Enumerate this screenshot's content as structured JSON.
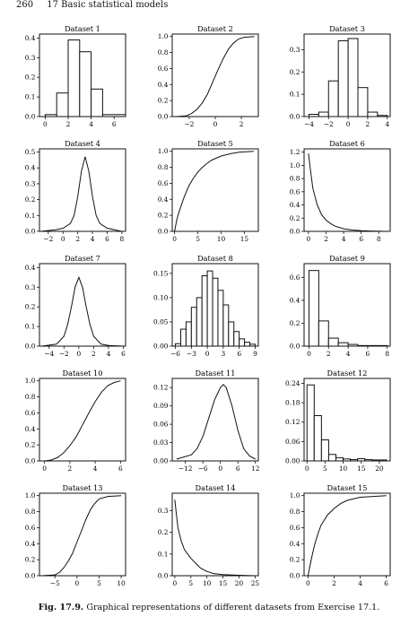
{
  "header": {
    "page_number": "260",
    "chapter": "17 Basic statistical models"
  },
  "caption": {
    "label": "Fig. 17.9.",
    "text": "Graphical representations of different datasets from Exercise 17.1."
  },
  "chart_data": [
    {
      "title": "Dataset 1",
      "type": "bar",
      "xlim": [
        -0.5,
        7
      ],
      "ylim": [
        0,
        0.42
      ],
      "xticks": [
        0,
        2,
        4,
        6
      ],
      "yticks": [
        0.0,
        0.1,
        0.2,
        0.3,
        0.4
      ],
      "ytick_labels": [
        "0.0",
        "0.1",
        "0.2",
        "0.3",
        "0.4"
      ],
      "bins": [
        [
          0,
          1,
          0.01
        ],
        [
          1,
          2,
          0.12
        ],
        [
          2,
          3,
          0.39
        ],
        [
          3,
          4,
          0.33
        ],
        [
          4,
          5,
          0.14
        ],
        [
          5,
          7,
          0.01
        ]
      ]
    },
    {
      "title": "Dataset 2",
      "type": "line",
      "xlim": [
        -3.3,
        3.3
      ],
      "ylim": [
        0,
        1.03
      ],
      "xticks": [
        -2,
        0,
        2
      ],
      "yticks": [
        0,
        0.2,
        0.4,
        0.6,
        0.8,
        1.0
      ],
      "ytick_labels": [
        "0.0",
        "0.2",
        "0.4",
        "0.6",
        "0.8",
        "1.0"
      ],
      "x": [
        -3.0,
        -2.2,
        -1.8,
        -1.4,
        -1.0,
        -0.6,
        -0.2,
        0.2,
        0.6,
        1.0,
        1.4,
        1.8,
        2.2,
        3.0
      ],
      "y": [
        0,
        0.01,
        0.04,
        0.09,
        0.17,
        0.28,
        0.43,
        0.58,
        0.72,
        0.84,
        0.92,
        0.97,
        0.99,
        1.0
      ]
    },
    {
      "title": "Dataset 3",
      "type": "bar",
      "xlim": [
        -4.5,
        4.3
      ],
      "ylim": [
        0,
        0.37
      ],
      "xticks": [
        -4,
        -2,
        0,
        2,
        4
      ],
      "yticks": [
        0,
        0.1,
        0.2,
        0.3
      ],
      "ytick_labels": [
        "0.0",
        "0.1",
        "0.2",
        "0.3"
      ],
      "bins": [
        [
          -4,
          -3,
          0.01
        ],
        [
          -3,
          -2,
          0.02
        ],
        [
          -2,
          -1,
          0.16
        ],
        [
          -1,
          0,
          0.34
        ],
        [
          0,
          1,
          0.35
        ],
        [
          1,
          2,
          0.13
        ],
        [
          2,
          3,
          0.02
        ],
        [
          3,
          4,
          0.005
        ]
      ]
    },
    {
      "title": "Dataset 4",
      "type": "line",
      "xlim": [
        -3.2,
        8.5
      ],
      "ylim": [
        0,
        0.52
      ],
      "xticks": [
        -2,
        0,
        2,
        4,
        6,
        8
      ],
      "yticks": [
        0,
        0.1,
        0.2,
        0.3,
        0.4,
        0.5
      ],
      "ytick_labels": [
        "0.0",
        "0.1",
        "0.2",
        "0.3",
        "0.4",
        "0.5"
      ],
      "x": [
        -3,
        -1,
        0,
        1,
        1.5,
        2,
        2.5,
        3,
        3.5,
        4,
        4.5,
        5,
        6,
        8
      ],
      "y": [
        0,
        0.01,
        0.02,
        0.05,
        0.1,
        0.22,
        0.38,
        0.47,
        0.38,
        0.22,
        0.1,
        0.05,
        0.02,
        0.0
      ]
    },
    {
      "title": "Dataset 5",
      "type": "line",
      "xlim": [
        -0.5,
        18
      ],
      "ylim": [
        0,
        1.03
      ],
      "xticks": [
        0,
        5,
        10,
        15
      ],
      "yticks": [
        0,
        0.2,
        0.4,
        0.6,
        0.8,
        1.0
      ],
      "ytick_labels": [
        "0.0",
        "0.2",
        "0.4",
        "0.6",
        "0.8",
        "1.0"
      ],
      "x": [
        0,
        0.5,
        1,
        2,
        3,
        4,
        5,
        6,
        7,
        8,
        10,
        12,
        14,
        17
      ],
      "y": [
        0,
        0.15,
        0.25,
        0.42,
        0.56,
        0.66,
        0.74,
        0.8,
        0.85,
        0.89,
        0.94,
        0.97,
        0.99,
        1.0
      ]
    },
    {
      "title": "Dataset 6",
      "type": "line",
      "xlim": [
        -0.5,
        9.3
      ],
      "ylim": [
        0,
        1.25
      ],
      "xticks": [
        0,
        2,
        4,
        6,
        8
      ],
      "yticks": [
        0,
        0.2,
        0.4,
        0.6,
        0.8,
        1.0,
        1.2
      ],
      "ytick_labels": [
        "0.0",
        "0.2",
        "0.4",
        "0.6",
        "0.8",
        "1.0",
        "1.2"
      ],
      "x": [
        0,
        0.2,
        0.5,
        1,
        1.5,
        2,
        2.5,
        3,
        3.5,
        4,
        5,
        6,
        7,
        9
      ],
      "y": [
        1.18,
        0.95,
        0.65,
        0.4,
        0.25,
        0.17,
        0.12,
        0.08,
        0.06,
        0.04,
        0.02,
        0.01,
        0.005,
        0
      ]
    },
    {
      "title": "Dataset 7",
      "type": "line",
      "xlim": [
        -5.3,
        6.3
      ],
      "ylim": [
        0,
        0.42
      ],
      "xticks": [
        -4,
        -2,
        0,
        2,
        4,
        6
      ],
      "yticks": [
        0,
        0.1,
        0.2,
        0.3,
        0.4
      ],
      "ytick_labels": [
        "0.0",
        "0.1",
        "0.2",
        "0.3",
        "0.4"
      ],
      "x": [
        -5,
        -3,
        -2,
        -1.5,
        -1,
        -0.5,
        0,
        0.5,
        1,
        1.5,
        2,
        3,
        4,
        6
      ],
      "y": [
        0,
        0.01,
        0.05,
        0.11,
        0.2,
        0.3,
        0.35,
        0.3,
        0.2,
        0.11,
        0.05,
        0.01,
        0.003,
        0
      ]
    },
    {
      "title": "Dataset 8",
      "type": "bar",
      "xlim": [
        -6.6,
        9.6
      ],
      "ylim": [
        0,
        0.17
      ],
      "xticks": [
        -6,
        -3,
        0,
        3,
        6,
        9
      ],
      "yticks": [
        0,
        0.05,
        0.1,
        0.15
      ],
      "ytick_labels": [
        "0.00",
        "0.05",
        "0.10",
        "0.15"
      ],
      "bins": [
        [
          -6,
          -5,
          0.005
        ],
        [
          -5,
          -4,
          0.035
        ],
        [
          -4,
          -3,
          0.05
        ],
        [
          -3,
          -2,
          0.08
        ],
        [
          -2,
          -1,
          0.1
        ],
        [
          -1,
          0,
          0.145
        ],
        [
          0,
          1,
          0.155
        ],
        [
          1,
          2,
          0.14
        ],
        [
          2,
          3,
          0.115
        ],
        [
          3,
          4,
          0.085
        ],
        [
          4,
          5,
          0.05
        ],
        [
          5,
          6,
          0.03
        ],
        [
          6,
          7,
          0.015
        ],
        [
          7,
          8,
          0.008
        ],
        [
          8,
          9,
          0.004
        ]
      ]
    },
    {
      "title": "Dataset 9",
      "type": "bar",
      "xlim": [
        -0.5,
        8.3
      ],
      "ylim": [
        0,
        0.72
      ],
      "xticks": [
        0,
        2,
        4,
        6,
        8
      ],
      "yticks": [
        0,
        0.2,
        0.4,
        0.6
      ],
      "ytick_labels": [
        "0.0",
        "0.2",
        "0.4",
        "0.6"
      ],
      "bins": [
        [
          0,
          1,
          0.66
        ],
        [
          1,
          2,
          0.22
        ],
        [
          2,
          3,
          0.07
        ],
        [
          3,
          4,
          0.03
        ],
        [
          4,
          5,
          0.015
        ],
        [
          5,
          8,
          0.005
        ]
      ]
    },
    {
      "title": "Dataset 10",
      "type": "line",
      "xlim": [
        -0.4,
        6.4
      ],
      "ylim": [
        0,
        1.03
      ],
      "xticks": [
        0,
        2,
        4,
        6
      ],
      "yticks": [
        0,
        0.2,
        0.4,
        0.6,
        0.8,
        1.0
      ],
      "ytick_labels": [
        "0.0",
        "0.2",
        "0.4",
        "0.6",
        "0.8",
        "1.0"
      ],
      "x": [
        0,
        0.5,
        1,
        1.5,
        2,
        2.5,
        3,
        3.5,
        4,
        4.5,
        5,
        5.5,
        6
      ],
      "y": [
        0,
        0.01,
        0.04,
        0.1,
        0.19,
        0.3,
        0.45,
        0.6,
        0.74,
        0.86,
        0.94,
        0.98,
        1.0
      ]
    },
    {
      "title": "Dataset 11",
      "type": "line",
      "xlim": [
        -16.5,
        13
      ],
      "ylim": [
        0,
        0.135
      ],
      "xticks": [
        -12,
        -6,
        0,
        6,
        12
      ],
      "yticks": [
        0,
        0.03,
        0.06,
        0.09,
        0.12
      ],
      "ytick_labels": [
        "0.00",
        "0.03",
        "0.06",
        "0.09",
        "0.12"
      ],
      "x": [
        -15,
        -10,
        -8,
        -6,
        -4,
        -2,
        0,
        1,
        2,
        4,
        6,
        8,
        10,
        12
      ],
      "y": [
        0.003,
        0.01,
        0.02,
        0.04,
        0.07,
        0.1,
        0.12,
        0.125,
        0.12,
        0.09,
        0.05,
        0.02,
        0.008,
        0.003
      ]
    },
    {
      "title": "Dataset 12",
      "type": "bar",
      "xlim": [
        -0.8,
        23
      ],
      "ylim": [
        0,
        0.255
      ],
      "xticks": [
        0,
        5,
        10,
        15,
        20
      ],
      "yticks": [
        0,
        0.06,
        0.12,
        0.18,
        0.24
      ],
      "ytick_labels": [
        "0.00",
        "0.06",
        "0.12",
        "0.18",
        "0.24"
      ],
      "bins": [
        [
          0,
          2,
          0.235
        ],
        [
          2,
          4,
          0.14
        ],
        [
          4,
          6,
          0.065
        ],
        [
          6,
          8,
          0.02
        ],
        [
          8,
          10,
          0.01
        ],
        [
          10,
          12,
          0.006
        ],
        [
          12,
          14,
          0.004
        ],
        [
          14,
          16,
          0.007
        ],
        [
          16,
          18,
          0.004
        ],
        [
          18,
          22,
          0.003
        ]
      ]
    },
    {
      "title": "Dataset 13",
      "type": "line",
      "xlim": [
        -8.5,
        11
      ],
      "ylim": [
        0,
        1.03
      ],
      "xticks": [
        -5,
        0,
        5,
        10
      ],
      "yticks": [
        0,
        0.2,
        0.4,
        0.6,
        0.8,
        1.0
      ],
      "ytick_labels": [
        "0.0",
        "0.2",
        "0.4",
        "0.6",
        "0.8",
        "1.0"
      ],
      "x": [
        -8,
        -5,
        -4,
        -3,
        -2,
        -1,
        0,
        1,
        2,
        3,
        4,
        5,
        7,
        10
      ],
      "y": [
        0,
        0.01,
        0.04,
        0.1,
        0.18,
        0.28,
        0.42,
        0.56,
        0.7,
        0.82,
        0.9,
        0.96,
        0.99,
        1.0
      ]
    },
    {
      "title": "Dataset 14",
      "type": "line",
      "xlim": [
        -0.8,
        26
      ],
      "ylim": [
        0,
        0.38
      ],
      "xticks": [
        0,
        5,
        10,
        15,
        20,
        25
      ],
      "yticks": [
        0,
        0.1,
        0.2,
        0.3
      ],
      "ytick_labels": [
        "0.0",
        "0.1",
        "0.2",
        "0.3"
      ],
      "x": [
        0,
        0.5,
        1,
        2,
        3,
        4,
        5,
        6,
        7,
        8,
        10,
        12,
        15,
        20,
        25
      ],
      "y": [
        0.35,
        0.28,
        0.22,
        0.16,
        0.12,
        0.1,
        0.08,
        0.065,
        0.05,
        0.035,
        0.02,
        0.01,
        0.005,
        0.002,
        0
      ]
    },
    {
      "title": "Dataset 15",
      "type": "line",
      "xlim": [
        -0.3,
        6.3
      ],
      "ylim": [
        0,
        1.03
      ],
      "xticks": [
        0,
        2,
        4,
        6
      ],
      "yticks": [
        0,
        0.2,
        0.4,
        0.6,
        0.8,
        1.0
      ],
      "ytick_labels": [
        "0.0",
        "0.2",
        "0.4",
        "0.6",
        "0.8",
        "1.0"
      ],
      "x": [
        0,
        0.1,
        0.3,
        0.5,
        0.75,
        1,
        1.5,
        2,
        2.5,
        3,
        4,
        5,
        6
      ],
      "y": [
        0,
        0.08,
        0.24,
        0.38,
        0.52,
        0.63,
        0.76,
        0.84,
        0.9,
        0.94,
        0.98,
        0.99,
        1.0
      ]
    }
  ]
}
